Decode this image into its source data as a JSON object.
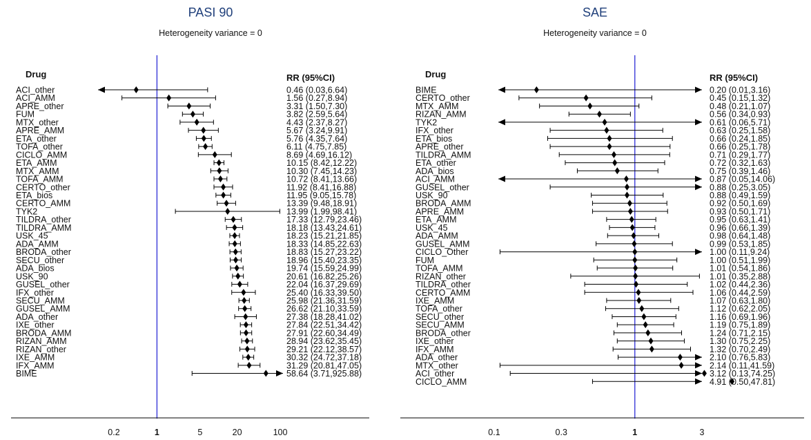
{
  "chart_data": [
    {
      "type": "forest",
      "title": "PASI 90",
      "subtitle": "Heterogeneity variance = 0",
      "label_header": "Drug",
      "value_header": "RR (95%CI)",
      "scale": "log",
      "null_value": 1,
      "xlim": [
        0.1,
        130
      ],
      "x_ticks": [
        "0.2",
        "1",
        "5",
        "20",
        "100"
      ],
      "x_tick_values": [
        0.2,
        1,
        5,
        20,
        100
      ],
      "rows": [
        {
          "label": "ACI_other",
          "rr": 0.46,
          "lo": 0.03,
          "hi": 6.64,
          "text": "0.46 (0.03,6.64)",
          "arrow_lo": true,
          "arrow_hi": false
        },
        {
          "label": "ACI_AMM",
          "rr": 1.56,
          "lo": 0.27,
          "hi": 8.94,
          "text": "1.56 (0.27,8.94)",
          "arrow_lo": false,
          "arrow_hi": false
        },
        {
          "label": "APRE_other",
          "rr": 3.31,
          "lo": 1.5,
          "hi": 7.3,
          "text": "3.31 (1.50,7.30)",
          "arrow_lo": false,
          "arrow_hi": false
        },
        {
          "label": "FUM",
          "rr": 3.82,
          "lo": 2.59,
          "hi": 5.64,
          "text": "3.82 (2.59,5.64)",
          "arrow_lo": false,
          "arrow_hi": false
        },
        {
          "label": "MTX_other",
          "rr": 4.43,
          "lo": 2.37,
          "hi": 8.27,
          "text": "4.43 (2.37,8.27)",
          "arrow_lo": false,
          "arrow_hi": false
        },
        {
          "label": "APRE_AMM",
          "rr": 5.67,
          "lo": 3.24,
          "hi": 9.91,
          "text": "5.67 (3.24,9.91)",
          "arrow_lo": false,
          "arrow_hi": false
        },
        {
          "label": "ETA_other",
          "rr": 5.76,
          "lo": 4.35,
          "hi": 7.64,
          "text": "5.76 (4.35,7.64)",
          "arrow_lo": false,
          "arrow_hi": false
        },
        {
          "label": "TOFA_other",
          "rr": 6.11,
          "lo": 4.75,
          "hi": 7.85,
          "text": "6.11 (4.75,7.85)",
          "arrow_lo": false,
          "arrow_hi": false
        },
        {
          "label": "CICLO_AMM",
          "rr": 8.69,
          "lo": 4.69,
          "hi": 16.12,
          "text": "8.69 (4.69,16.12)",
          "arrow_lo": false,
          "arrow_hi": false
        },
        {
          "label": "ETA_AMM",
          "rr": 10.15,
          "lo": 8.42,
          "hi": 12.22,
          "text": "10.15 (8.42,12.22)",
          "arrow_lo": false,
          "arrow_hi": false
        },
        {
          "label": "MTX_AMM",
          "rr": 10.3,
          "lo": 7.45,
          "hi": 14.23,
          "text": "10.30 (7.45,14.23)",
          "arrow_lo": false,
          "arrow_hi": false
        },
        {
          "label": "TOFA_AMM",
          "rr": 10.72,
          "lo": 8.41,
          "hi": 13.66,
          "text": "10.72 (8.41,13.66)",
          "arrow_lo": false,
          "arrow_hi": false
        },
        {
          "label": "CERTO_other",
          "rr": 11.92,
          "lo": 8.41,
          "hi": 16.88,
          "text": "11.92 (8.41,16.88)",
          "arrow_lo": false,
          "arrow_hi": false
        },
        {
          "label": "ETA_bios",
          "rr": 11.95,
          "lo": 9.05,
          "hi": 15.78,
          "text": "11.95 (9.05,15.78)",
          "arrow_lo": false,
          "arrow_hi": false
        },
        {
          "label": "CERTO_AMM",
          "rr": 13.39,
          "lo": 9.48,
          "hi": 18.91,
          "text": "13.39 (9.48,18.91)",
          "arrow_lo": false,
          "arrow_hi": false
        },
        {
          "label": "TYK2",
          "rr": 13.99,
          "lo": 1.99,
          "hi": 98.41,
          "text": "13.99 (1.99,98.41)",
          "arrow_lo": false,
          "arrow_hi": false
        },
        {
          "label": "TILDRA_other",
          "rr": 17.33,
          "lo": 12.79,
          "hi": 23.46,
          "text": "17.33 (12.79,23.46)",
          "arrow_lo": false,
          "arrow_hi": false
        },
        {
          "label": "TILDRA_AMM",
          "rr": 18.18,
          "lo": 13.43,
          "hi": 24.61,
          "text": "18.18 (13.43,24.61)",
          "arrow_lo": false,
          "arrow_hi": false
        },
        {
          "label": "USK_45",
          "rr": 18.23,
          "lo": 15.21,
          "hi": 21.85,
          "text": "18.23 (15.21,21.85)",
          "arrow_lo": false,
          "arrow_hi": false
        },
        {
          "label": "ADA_AMM",
          "rr": 18.33,
          "lo": 14.85,
          "hi": 22.63,
          "text": "18.33 (14.85,22.63)",
          "arrow_lo": false,
          "arrow_hi": false
        },
        {
          "label": "BRODA_other",
          "rr": 18.83,
          "lo": 15.27,
          "hi": 23.22,
          "text": "18.83 (15.27,23.22)",
          "arrow_lo": false,
          "arrow_hi": false
        },
        {
          "label": "SECU_other",
          "rr": 18.96,
          "lo": 15.4,
          "hi": 23.35,
          "text": "18.96 (15.40,23.35)",
          "arrow_lo": false,
          "arrow_hi": false
        },
        {
          "label": "ADA_bios",
          "rr": 19.74,
          "lo": 15.59,
          "hi": 24.99,
          "text": "19.74 (15.59,24.99)",
          "arrow_lo": false,
          "arrow_hi": false
        },
        {
          "label": "USK_90",
          "rr": 20.61,
          "lo": 16.82,
          "hi": 25.26,
          "text": "20.61 (16.82,25.26)",
          "arrow_lo": false,
          "arrow_hi": false
        },
        {
          "label": "GUSEL_other",
          "rr": 22.04,
          "lo": 16.37,
          "hi": 29.69,
          "text": "22.04 (16.37,29.69)",
          "arrow_lo": false,
          "arrow_hi": false
        },
        {
          "label": "IFX_other",
          "rr": 25.4,
          "lo": 16.33,
          "hi": 39.5,
          "text": "25.40 (16.33,39.50)",
          "arrow_lo": false,
          "arrow_hi": false
        },
        {
          "label": "SECU_AMM",
          "rr": 25.98,
          "lo": 21.36,
          "hi": 31.59,
          "text": "25.98 (21.36,31.59)",
          "arrow_lo": false,
          "arrow_hi": false
        },
        {
          "label": "GUSEL_AMM",
          "rr": 26.62,
          "lo": 21.1,
          "hi": 33.59,
          "text": "26.62 (21.10,33.59)",
          "arrow_lo": false,
          "arrow_hi": false
        },
        {
          "label": "ADA_other",
          "rr": 27.38,
          "lo": 18.28,
          "hi": 41.02,
          "text": "27.38 (18.28,41.02)",
          "arrow_lo": false,
          "arrow_hi": false
        },
        {
          "label": "IXE_other",
          "rr": 27.84,
          "lo": 22.51,
          "hi": 34.42,
          "text": "27.84 (22.51,34.42)",
          "arrow_lo": false,
          "arrow_hi": false
        },
        {
          "label": "BRODA_AMM",
          "rr": 27.91,
          "lo": 22.6,
          "hi": 34.49,
          "text": "27.91 (22.60,34.49)",
          "arrow_lo": false,
          "arrow_hi": false
        },
        {
          "label": "RIZAN_AMM",
          "rr": 28.94,
          "lo": 23.62,
          "hi": 35.45,
          "text": "28.94 (23.62,35.45)",
          "arrow_lo": false,
          "arrow_hi": false
        },
        {
          "label": "RIZAN_other",
          "rr": 29.21,
          "lo": 22.12,
          "hi": 38.57,
          "text": "29.21 (22.12,38.57)",
          "arrow_lo": false,
          "arrow_hi": false
        },
        {
          "label": "IXE_AMM",
          "rr": 30.32,
          "lo": 24.72,
          "hi": 37.18,
          "text": "30.32 (24.72,37.18)",
          "arrow_lo": false,
          "arrow_hi": false
        },
        {
          "label": "IFX_AMM",
          "rr": 31.29,
          "lo": 20.81,
          "hi": 47.05,
          "text": "31.29 (20.81,47.05)",
          "arrow_lo": false,
          "arrow_hi": false
        },
        {
          "label": "BIME",
          "rr": 58.64,
          "lo": 3.71,
          "hi": 925.88,
          "text": "58.64 (3.71,925.88)",
          "arrow_lo": false,
          "arrow_hi": true
        }
      ]
    },
    {
      "type": "forest",
      "title": "SAE",
      "subtitle": "Heterogeneity variance = 0",
      "label_header": "Drug",
      "value_header": "RR (95%CI)",
      "scale": "log",
      "null_value": 1,
      "xlim": [
        0.0712,
        4.5
      ],
      "x_ticks": [
        "0.1",
        "0.3",
        "1",
        "3"
      ],
      "x_tick_values": [
        0.1,
        0.3,
        1,
        3
      ],
      "rows": [
        {
          "label": "BIME",
          "rr": 0.2,
          "lo": 0.01,
          "hi": 3.16,
          "text": "0.20 (0.01,3.16)",
          "arrow_lo": true,
          "arrow_hi": true
        },
        {
          "label": "CERTO_other",
          "rr": 0.45,
          "lo": 0.15,
          "hi": 1.32,
          "text": "0.45 (0.15,1.32)",
          "arrow_lo": false,
          "arrow_hi": false
        },
        {
          "label": "MTX_AMM",
          "rr": 0.48,
          "lo": 0.21,
          "hi": 1.07,
          "text": "0.48 (0.21,1.07)",
          "arrow_lo": false,
          "arrow_hi": false
        },
        {
          "label": "RIZAN_AMM",
          "rr": 0.56,
          "lo": 0.34,
          "hi": 0.93,
          "text": "0.56 (0.34,0.93)",
          "arrow_lo": false,
          "arrow_hi": false
        },
        {
          "label": "TYK2",
          "rr": 0.61,
          "lo": 0.06,
          "hi": 5.71,
          "text": "0.61 (0.06,5.71)",
          "arrow_lo": true,
          "arrow_hi": true
        },
        {
          "label": "IFX_other",
          "rr": 0.63,
          "lo": 0.25,
          "hi": 1.58,
          "text": "0.63 (0.25,1.58)",
          "arrow_lo": false,
          "arrow_hi": false
        },
        {
          "label": "ETA_bios",
          "rr": 0.66,
          "lo": 0.24,
          "hi": 1.85,
          "text": "0.66 (0.24,1.85)",
          "arrow_lo": false,
          "arrow_hi": false
        },
        {
          "label": "APRE_other",
          "rr": 0.66,
          "lo": 0.25,
          "hi": 1.78,
          "text": "0.66 (0.25,1.78)",
          "arrow_lo": false,
          "arrow_hi": false
        },
        {
          "label": "TILDRA_AMM",
          "rr": 0.71,
          "lo": 0.29,
          "hi": 1.77,
          "text": "0.71 (0.29,1.77)",
          "arrow_lo": false,
          "arrow_hi": false
        },
        {
          "label": "ETA_other",
          "rr": 0.72,
          "lo": 0.32,
          "hi": 1.63,
          "text": "0.72 (0.32,1.63)",
          "arrow_lo": false,
          "arrow_hi": false
        },
        {
          "label": "ADA_bios",
          "rr": 0.75,
          "lo": 0.39,
          "hi": 1.46,
          "text": "0.75 (0.39,1.46)",
          "arrow_lo": false,
          "arrow_hi": false
        },
        {
          "label": "ACI_AMM",
          "rr": 0.87,
          "lo": 0.05,
          "hi": 14.06,
          "text": "0.87 (0.05,14.06)",
          "arrow_lo": true,
          "arrow_hi": true
        },
        {
          "label": "GUSEL_other",
          "rr": 0.88,
          "lo": 0.25,
          "hi": 3.05,
          "text": "0.88 (0.25,3.05)",
          "arrow_lo": false,
          "arrow_hi": true
        },
        {
          "label": "USK_90",
          "rr": 0.88,
          "lo": 0.49,
          "hi": 1.59,
          "text": "0.88 (0.49,1.59)",
          "arrow_lo": false,
          "arrow_hi": false
        },
        {
          "label": "BRODA_AMM",
          "rr": 0.92,
          "lo": 0.5,
          "hi": 1.69,
          "text": "0.92 (0.50,1.69)",
          "arrow_lo": false,
          "arrow_hi": false
        },
        {
          "label": "APRE_AMM",
          "rr": 0.93,
          "lo": 0.5,
          "hi": 1.71,
          "text": "0.93 (0.50,1.71)",
          "arrow_lo": false,
          "arrow_hi": false
        },
        {
          "label": "ETA_AMM",
          "rr": 0.95,
          "lo": 0.63,
          "hi": 1.41,
          "text": "0.95 (0.63,1.41)",
          "arrow_lo": false,
          "arrow_hi": false
        },
        {
          "label": "USK_45",
          "rr": 0.96,
          "lo": 0.66,
          "hi": 1.39,
          "text": "0.96 (0.66,1.39)",
          "arrow_lo": false,
          "arrow_hi": false
        },
        {
          "label": "ADA_AMM",
          "rr": 0.98,
          "lo": 0.64,
          "hi": 1.48,
          "text": "0.98 (0.64,1.48)",
          "arrow_lo": false,
          "arrow_hi": false
        },
        {
          "label": "GUSEL_AMM",
          "rr": 0.99,
          "lo": 0.53,
          "hi": 1.85,
          "text": "0.99 (0.53,1.85)",
          "arrow_lo": false,
          "arrow_hi": false
        },
        {
          "label": "CICLO_Other",
          "rr": 1.0,
          "lo": 0.11,
          "hi": 9.24,
          "text": "1.00 (0.11,9.24)",
          "arrow_lo": false,
          "arrow_hi": true
        },
        {
          "label": "FUM",
          "rr": 1.0,
          "lo": 0.51,
          "hi": 1.99,
          "text": "1.00 (0.51,1.99)",
          "arrow_lo": false,
          "arrow_hi": false
        },
        {
          "label": "TOFA_AMM",
          "rr": 1.01,
          "lo": 0.54,
          "hi": 1.86,
          "text": "1.01 (0.54,1.86)",
          "arrow_lo": false,
          "arrow_hi": false
        },
        {
          "label": "RIZAN_other",
          "rr": 1.01,
          "lo": 0.35,
          "hi": 2.88,
          "text": "1.01 (0.35,2.88)",
          "arrow_lo": false,
          "arrow_hi": false
        },
        {
          "label": "TILDRA_other",
          "rr": 1.02,
          "lo": 0.44,
          "hi": 2.36,
          "text": "1.02 (0.44,2.36)",
          "arrow_lo": false,
          "arrow_hi": false
        },
        {
          "label": "CERTO_AMM",
          "rr": 1.06,
          "lo": 0.44,
          "hi": 2.59,
          "text": "1.06 (0.44,2.59)",
          "arrow_lo": false,
          "arrow_hi": false
        },
        {
          "label": "IXE_AMM",
          "rr": 1.07,
          "lo": 0.63,
          "hi": 1.8,
          "text": "1.07 (0.63,1.80)",
          "arrow_lo": false,
          "arrow_hi": false
        },
        {
          "label": "TOFA_other",
          "rr": 1.12,
          "lo": 0.62,
          "hi": 2.05,
          "text": "1.12 (0.62,2.05)",
          "arrow_lo": false,
          "arrow_hi": false
        },
        {
          "label": "SECU_other",
          "rr": 1.16,
          "lo": 0.69,
          "hi": 1.96,
          "text": "1.16 (0.69,1.96)",
          "arrow_lo": false,
          "arrow_hi": false
        },
        {
          "label": "SECU_AMM",
          "rr": 1.19,
          "lo": 0.75,
          "hi": 1.89,
          "text": "1.19 (0.75,1.89)",
          "arrow_lo": false,
          "arrow_hi": false
        },
        {
          "label": "BRODA_other",
          "rr": 1.24,
          "lo": 0.71,
          "hi": 2.15,
          "text": "1.24 (0.71,2.15)",
          "arrow_lo": false,
          "arrow_hi": false
        },
        {
          "label": "IXE_other",
          "rr": 1.3,
          "lo": 0.75,
          "hi": 2.25,
          "text": "1.30 (0.75,2.25)",
          "arrow_lo": false,
          "arrow_hi": false
        },
        {
          "label": "IFX_AMM",
          "rr": 1.32,
          "lo": 0.7,
          "hi": 2.49,
          "text": "1.32 (0.70,2.49)",
          "arrow_lo": false,
          "arrow_hi": false
        },
        {
          "label": "ADA_other",
          "rr": 2.1,
          "lo": 0.76,
          "hi": 5.83,
          "text": "2.10 (0.76,5.83)",
          "arrow_lo": false,
          "arrow_hi": true
        },
        {
          "label": "MTX_other",
          "rr": 2.14,
          "lo": 0.11,
          "hi": 41.59,
          "text": "2.14 (0.11,41.59)",
          "arrow_lo": false,
          "arrow_hi": true
        },
        {
          "label": "ACI_other",
          "rr": 3.12,
          "lo": 0.13,
          "hi": 74.25,
          "text": "3.12 (0.13,74.25)",
          "arrow_lo": false,
          "arrow_hi": true
        },
        {
          "label": "CICLO_AMM",
          "rr": 4.91,
          "lo": 0.5,
          "hi": 47.81,
          "text": "4.91 (0.50,47.81)",
          "arrow_lo": false,
          "arrow_hi": true
        }
      ]
    }
  ],
  "colors": {
    "null_line": "#2b2bd6",
    "title": "#1f3f7a",
    "marks": "#000000"
  }
}
